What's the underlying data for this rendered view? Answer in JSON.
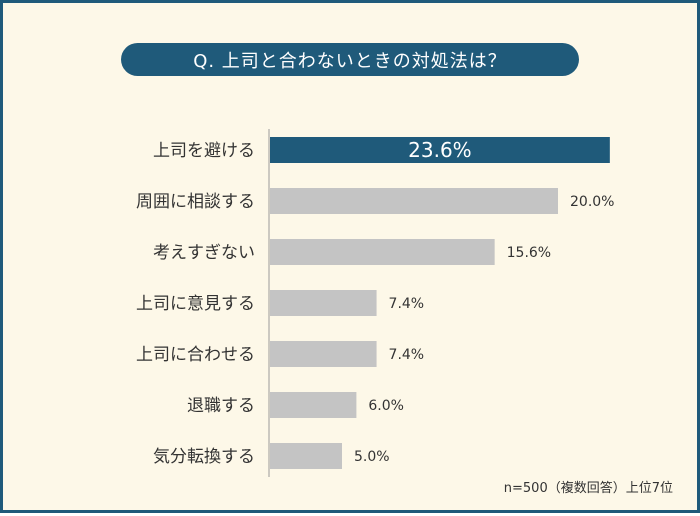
{
  "title": "Q. 上司と合わないときの対処法は？",
  "footnote": "n=500（複数回答）上位7位",
  "colors": {
    "background": "#fdf8e8",
    "accent": "#1f5a7a",
    "bar": "#c4c4c4",
    "highlight_bar": "#1f5a7a"
  },
  "chart_data": {
    "type": "bar",
    "orientation": "horizontal",
    "categories": [
      "上司を避ける",
      "周囲に相談する",
      "考えすぎない",
      "上司に意見する",
      "上司に合わせる",
      "退職する",
      "気分転換する"
    ],
    "values": [
      23.6,
      20.0,
      15.6,
      7.4,
      7.4,
      6.0,
      5.0
    ],
    "value_labels": [
      "23.6%",
      "20.0%",
      "15.6%",
      "7.4%",
      "7.4%",
      "6.0%",
      "5.0%"
    ],
    "highlight_index": 0,
    "unit": "%",
    "xlim": [
      0,
      100
    ],
    "grid": false,
    "legend": "none"
  }
}
